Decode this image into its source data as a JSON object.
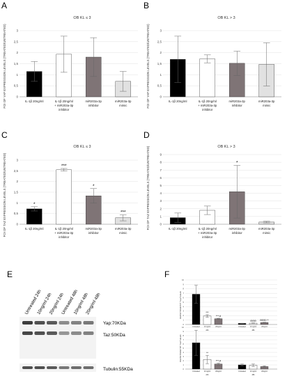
{
  "colors": {
    "black": "#000000",
    "white": "#ffffff",
    "dark_gray": "#7f7476",
    "light_gray": "#e1e1e1",
    "axis": "#8a8a8a",
    "grid": "#d9d9d9"
  },
  "panels": {
    "A": {
      "letter": "A",
      "title": "OB KL ≤ 3",
      "ylabel": "FOI OF YAP EXPRESSION LEVELS (TREATED/UNTREATED)"
    },
    "B": {
      "letter": "B",
      "title": "OB KL > 3",
      "ylabel": "FOI OF YAP EXPRESSION LEVELS (TREATED/UNTREATED)"
    },
    "C": {
      "letter": "C",
      "title": "OB KL ≤ 3",
      "ylabel": "FOI OF TAZ EXPRESSION LEVELS (TREATED/UNTREATED)"
    },
    "D": {
      "letter": "D",
      "title": "OB KL > 3",
      "ylabel": "FOI OF TAZ EXPRESSION LEVELS (TREATED/UNTREATED)"
    },
    "E": {
      "letter": "E"
    },
    "F": {
      "letter": "F"
    }
  },
  "categories": [
    "IL-1β 20ng/ml",
    "IL-1β 20ng/ml + miR203a-3p inhibitor",
    "miR203a-3p inhibitor",
    "miR203a-3p mimic"
  ],
  "chart_data": [
    {
      "panel": "A",
      "type": "bar",
      "title": "OB KL ≤ 3",
      "ylabel": "FOI OF YAP EXPRESSION LEVELS (TREATED/UNTREATED)",
      "ylim": [
        0,
        3
      ],
      "yticks": [
        "0",
        "0,5",
        "1",
        "1,5",
        "2",
        "2,5",
        "3"
      ],
      "values": [
        1.15,
        1.93,
        1.8,
        0.7
      ],
      "errors": [
        0.45,
        0.82,
        0.88,
        0.45
      ],
      "signif": [
        "",
        "",
        "",
        ""
      ],
      "bar_colors": [
        "#000000",
        "#ffffff",
        "#7f7476",
        "#e1e1e1"
      ]
    },
    {
      "panel": "B",
      "type": "bar",
      "title": "OB KL > 3",
      "ylabel": "FOI OF YAP EXPRESSION LEVELS (TREATED/UNTREATED)",
      "ylim": [
        0,
        3
      ],
      "yticks": [
        "0",
        "0,5",
        "1",
        "1,5",
        "2",
        "2,5",
        "3"
      ],
      "values": [
        1.7,
        1.72,
        1.52,
        1.47
      ],
      "errors": [
        1.05,
        0.18,
        0.55,
        0.98
      ],
      "signif": [
        "",
        "",
        "",
        ""
      ],
      "bar_colors": [
        "#000000",
        "#ffffff",
        "#7f7476",
        "#e1e1e1"
      ]
    },
    {
      "panel": "C",
      "type": "bar",
      "title": "OB KL ≤ 3",
      "ylabel": "FOI OF TAZ EXPRESSION LEVELS (TREATED/UNTREATED)",
      "ylim": [
        0,
        3
      ],
      "yticks": [
        "0",
        "0,5",
        "1",
        "1,5",
        "2",
        "2,5",
        "3"
      ],
      "values": [
        0.72,
        2.55,
        1.33,
        0.3
      ],
      "errors": [
        0.1,
        0.06,
        0.34,
        0.14
      ],
      "signif": [
        "*",
        "***",
        "*",
        "***"
      ],
      "bar_colors": [
        "#000000",
        "#ffffff",
        "#7f7476",
        "#e1e1e1"
      ]
    },
    {
      "panel": "D",
      "type": "bar",
      "title": "OB KL > 3",
      "ylabel": "FOI OF TAZ EXPRESSION LEVELS (TREATED/UNTREATED)",
      "ylim": [
        0,
        9
      ],
      "yticks": [
        "0",
        "1",
        "2",
        "3",
        "4",
        "5",
        "6",
        "7",
        "8",
        "9"
      ],
      "values": [
        0.85,
        1.8,
        4.2,
        0.28
      ],
      "errors": [
        0.6,
        0.55,
        3.4,
        0.1
      ],
      "signif": [
        "",
        "",
        "*",
        ""
      ],
      "bar_colors": [
        "#000000",
        "#ffffff",
        "#7f7476",
        "#e1e1e1"
      ]
    },
    {
      "panel": "F-top",
      "type": "bar",
      "ylim": [
        0,
        10
      ],
      "yticks": [
        "0",
        "1",
        "2",
        "3",
        "4",
        "5",
        "6",
        "7",
        "8",
        "9",
        "10"
      ],
      "ylabel": "DENSITOMETRY Yap/Tubulin",
      "categories": [
        "Untreated",
        "10 ng/ml",
        "20ng/ml",
        "Untreated",
        "10 ng/ml",
        "20ng/ml"
      ],
      "group_labels": [
        "24h",
        "48h"
      ],
      "values": [
        6.8,
        1.9,
        1.3,
        0.25,
        0.3,
        0.45
      ],
      "errors": [
        2.0,
        0.3,
        0.1,
        0.05,
        0.05,
        0.05
      ],
      "signif": [
        "",
        "***",
        "***,#",
        "",
        "ΘΘΘ",
        "ΘΘΘ,^^"
      ],
      "bar_colors": [
        "#000000",
        "#ffffff",
        "#7f7476",
        "#000000",
        "#ffffff",
        "#7f7476"
      ]
    },
    {
      "panel": "F-bottom",
      "type": "bar",
      "ylim": [
        0,
        10
      ],
      "yticks": [
        "0",
        "1",
        "2",
        "3",
        "4",
        "5",
        "6",
        "7",
        "8",
        "9",
        "10"
      ],
      "ylabel": "DENSITOMETRY Taz/Tubulin",
      "categories": [
        "Untreated",
        "10 ng/ml",
        "20ng/ml",
        "Untreated",
        "10 ng/ml",
        "20ng/ml"
      ],
      "group_labels": [
        "24h",
        "48h"
      ],
      "values": [
        6.3,
        2.3,
        1.2,
        1.0,
        0.9,
        0.6
      ],
      "errors": [
        3.0,
        1.0,
        0.2,
        0.2,
        0.3,
        0.2
      ],
      "signif": [
        "",
        "**",
        "***,#",
        "",
        "",
        ""
      ],
      "bar_colors": [
        "#000000",
        "#ffffff",
        "#7f7476",
        "#000000",
        "#ffffff",
        "#7f7476"
      ]
    }
  ],
  "blot": {
    "lanes": [
      "Untreated 24h",
      "10ng/ml 24h",
      "20ng/ml 24h",
      "Untreated 48h",
      "10ng/ml 48h",
      "20ng/ml 48h"
    ],
    "band_labels": [
      "Yap:70KDa",
      "Taz:50KDa",
      "Tubulin:55KDa"
    ],
    "yap_intensity": [
      0.85,
      0.75,
      0.7,
      0.45,
      0.5,
      0.55
    ],
    "taz_intensity": [
      0.8,
      0.75,
      0.7,
      0.4,
      0.45,
      0.5
    ],
    "tubulin_intensity": [
      0.75,
      0.75,
      0.7,
      0.55,
      0.6,
      0.6
    ]
  }
}
